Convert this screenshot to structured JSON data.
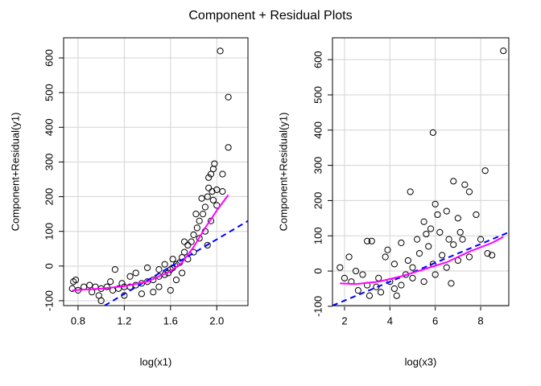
{
  "title": "Component + Residual Plots",
  "chart_data": [
    {
      "type": "scatter",
      "x_label": "log(x1)",
      "y_label": "Component+Residual(y1)",
      "xlim": [
        0.675,
        2.27
      ],
      "ylim": [
        -114,
        658
      ],
      "xticks": [
        0.8,
        1.2,
        1.6,
        {
          "value": 2,
          "label": "2.0"
        }
      ],
      "yticks": [
        -100,
        0,
        100,
        200,
        300,
        400,
        500,
        600
      ],
      "grid": true,
      "series": [
        {
          "type": "scatter",
          "color": "#000000",
          "x": [
            2.03,
            2.1,
            2.1,
            1.98,
            1.97,
            1.95,
            2.05,
            2.0,
            1.93,
            1.92,
            1.9,
            1.88,
            1.85,
            1.83,
            1.8,
            1.78,
            1.75,
            1.72,
            1.7,
            1.68,
            1.65,
            1.62,
            1.6,
            1.58,
            1.55,
            1.5,
            1.45,
            1.4,
            1.35,
            1.3,
            1.25,
            1.2,
            1.15,
            1.1,
            1.05,
            1.0,
            0.95,
            0.9,
            0.85,
            0.78,
            0.76,
            0.75,
            0.8,
            1.0,
            0.98,
            1.12,
            1.3,
            1.4,
            1.5,
            1.6,
            1.45,
            1.35,
            1.55,
            1.7,
            1.75,
            1.8,
            1.85,
            1.9,
            1.95,
            2.0,
            1.92,
            1.97,
            2.05,
            1.65,
            1.25,
            1.2,
            1.18,
            0.92,
            1.08,
            1.5,
            1.62,
            1.72,
            1.82,
            1.87,
            1.93,
            1.96
          ],
          "values": [
            620,
            487,
            342,
            295,
            280,
            265,
            265,
            220,
            225,
            200,
            170,
            150,
            130,
            110,
            90,
            70,
            60,
            40,
            25,
            10,
            5,
            -5,
            -10,
            -20,
            -25,
            -30,
            -40,
            -45,
            -50,
            -55,
            -60,
            -60,
            -65,
            -70,
            -60,
            -65,
            -60,
            -55,
            -60,
            -40,
            -45,
            -65,
            -70,
            -100,
            -85,
            -10,
            -20,
            -5,
            -60,
            -70,
            -75,
            -80,
            5,
            -20,
            20,
            40,
            80,
            100,
            130,
            175,
            60,
            190,
            215,
            -40,
            -30,
            -85,
            -50,
            -75,
            -45,
            -10,
            20,
            70,
            150,
            195,
            255,
            215
          ]
        },
        {
          "type": "line",
          "color": "#0000ff",
          "dash": true,
          "x": [
            1.03,
            2.27
          ],
          "values": [
            -114,
            130
          ]
        },
        {
          "type": "line",
          "color": "#ff00ff",
          "dash": false,
          "x": [
            0.75,
            1.0,
            1.2,
            1.4,
            1.6,
            1.7,
            1.8,
            1.9,
            2.0,
            2.1
          ],
          "values": [
            -70,
            -65,
            -58,
            -45,
            -15,
            10,
            55,
            110,
            160,
            205
          ]
        }
      ]
    },
    {
      "type": "scatter",
      "x_label": "log(x3)",
      "y_label": "Component+Residual(y1)",
      "xlim": [
        1.47,
        9.24
      ],
      "ylim": [
        -98,
        662
      ],
      "xticks": [
        2,
        4,
        6,
        8
      ],
      "yticks": [
        -100,
        0,
        100,
        200,
        300,
        400,
        500,
        600
      ],
      "grid": true,
      "series": [
        {
          "type": "scatter",
          "color": "#000000",
          "x": [
            9.0,
            5.9,
            8.2,
            4.9,
            6.8,
            7.3,
            7.5,
            6.0,
            6.1,
            6.5,
            7.0,
            7.8,
            5.5,
            5.8,
            6.2,
            8.0,
            8.3,
            8.5,
            7.2,
            6.8,
            5.2,
            4.5,
            3.0,
            3.2,
            2.2,
            1.8,
            2.0,
            2.5,
            2.8,
            3.0,
            3.5,
            4.0,
            4.2,
            4.5,
            5.0,
            5.5,
            6.0,
            6.5,
            7.0,
            7.5,
            4.8,
            5.3,
            5.7,
            3.8,
            3.6,
            4.3,
            2.6,
            3.9,
            6.3,
            6.7,
            5.0,
            4.2,
            3.4,
            2.3,
            4.7,
            5.9,
            6.6,
            7.1,
            5.6,
            3.1
          ],
          "values": [
            625,
            393,
            285,
            225,
            255,
            245,
            225,
            190,
            160,
            170,
            150,
            160,
            140,
            120,
            110,
            90,
            50,
            45,
            90,
            75,
            90,
            80,
            85,
            85,
            40,
            10,
            -20,
            0,
            -10,
            -40,
            -20,
            -30,
            -50,
            -40,
            -20,
            -30,
            -10,
            10,
            30,
            40,
            30,
            50,
            70,
            40,
            -60,
            -70,
            -55,
            60,
            45,
            -35,
            10,
            20,
            -45,
            -30,
            -10,
            20,
            90,
            110,
            105,
            -70
          ]
        },
        {
          "type": "line",
          "color": "#0000ff",
          "dash": true,
          "x": [
            1.47,
            9.24
          ],
          "values": [
            -98,
            110
          ]
        },
        {
          "type": "line",
          "color": "#ff00ff",
          "dash": false,
          "x": [
            1.8,
            2.5,
            3.5,
            4.5,
            5.5,
            6.5,
            7.5,
            8.5,
            9.0
          ],
          "values": [
            -35,
            -37,
            -30,
            -15,
            5,
            25,
            55,
            80,
            97
          ]
        }
      ]
    }
  ]
}
